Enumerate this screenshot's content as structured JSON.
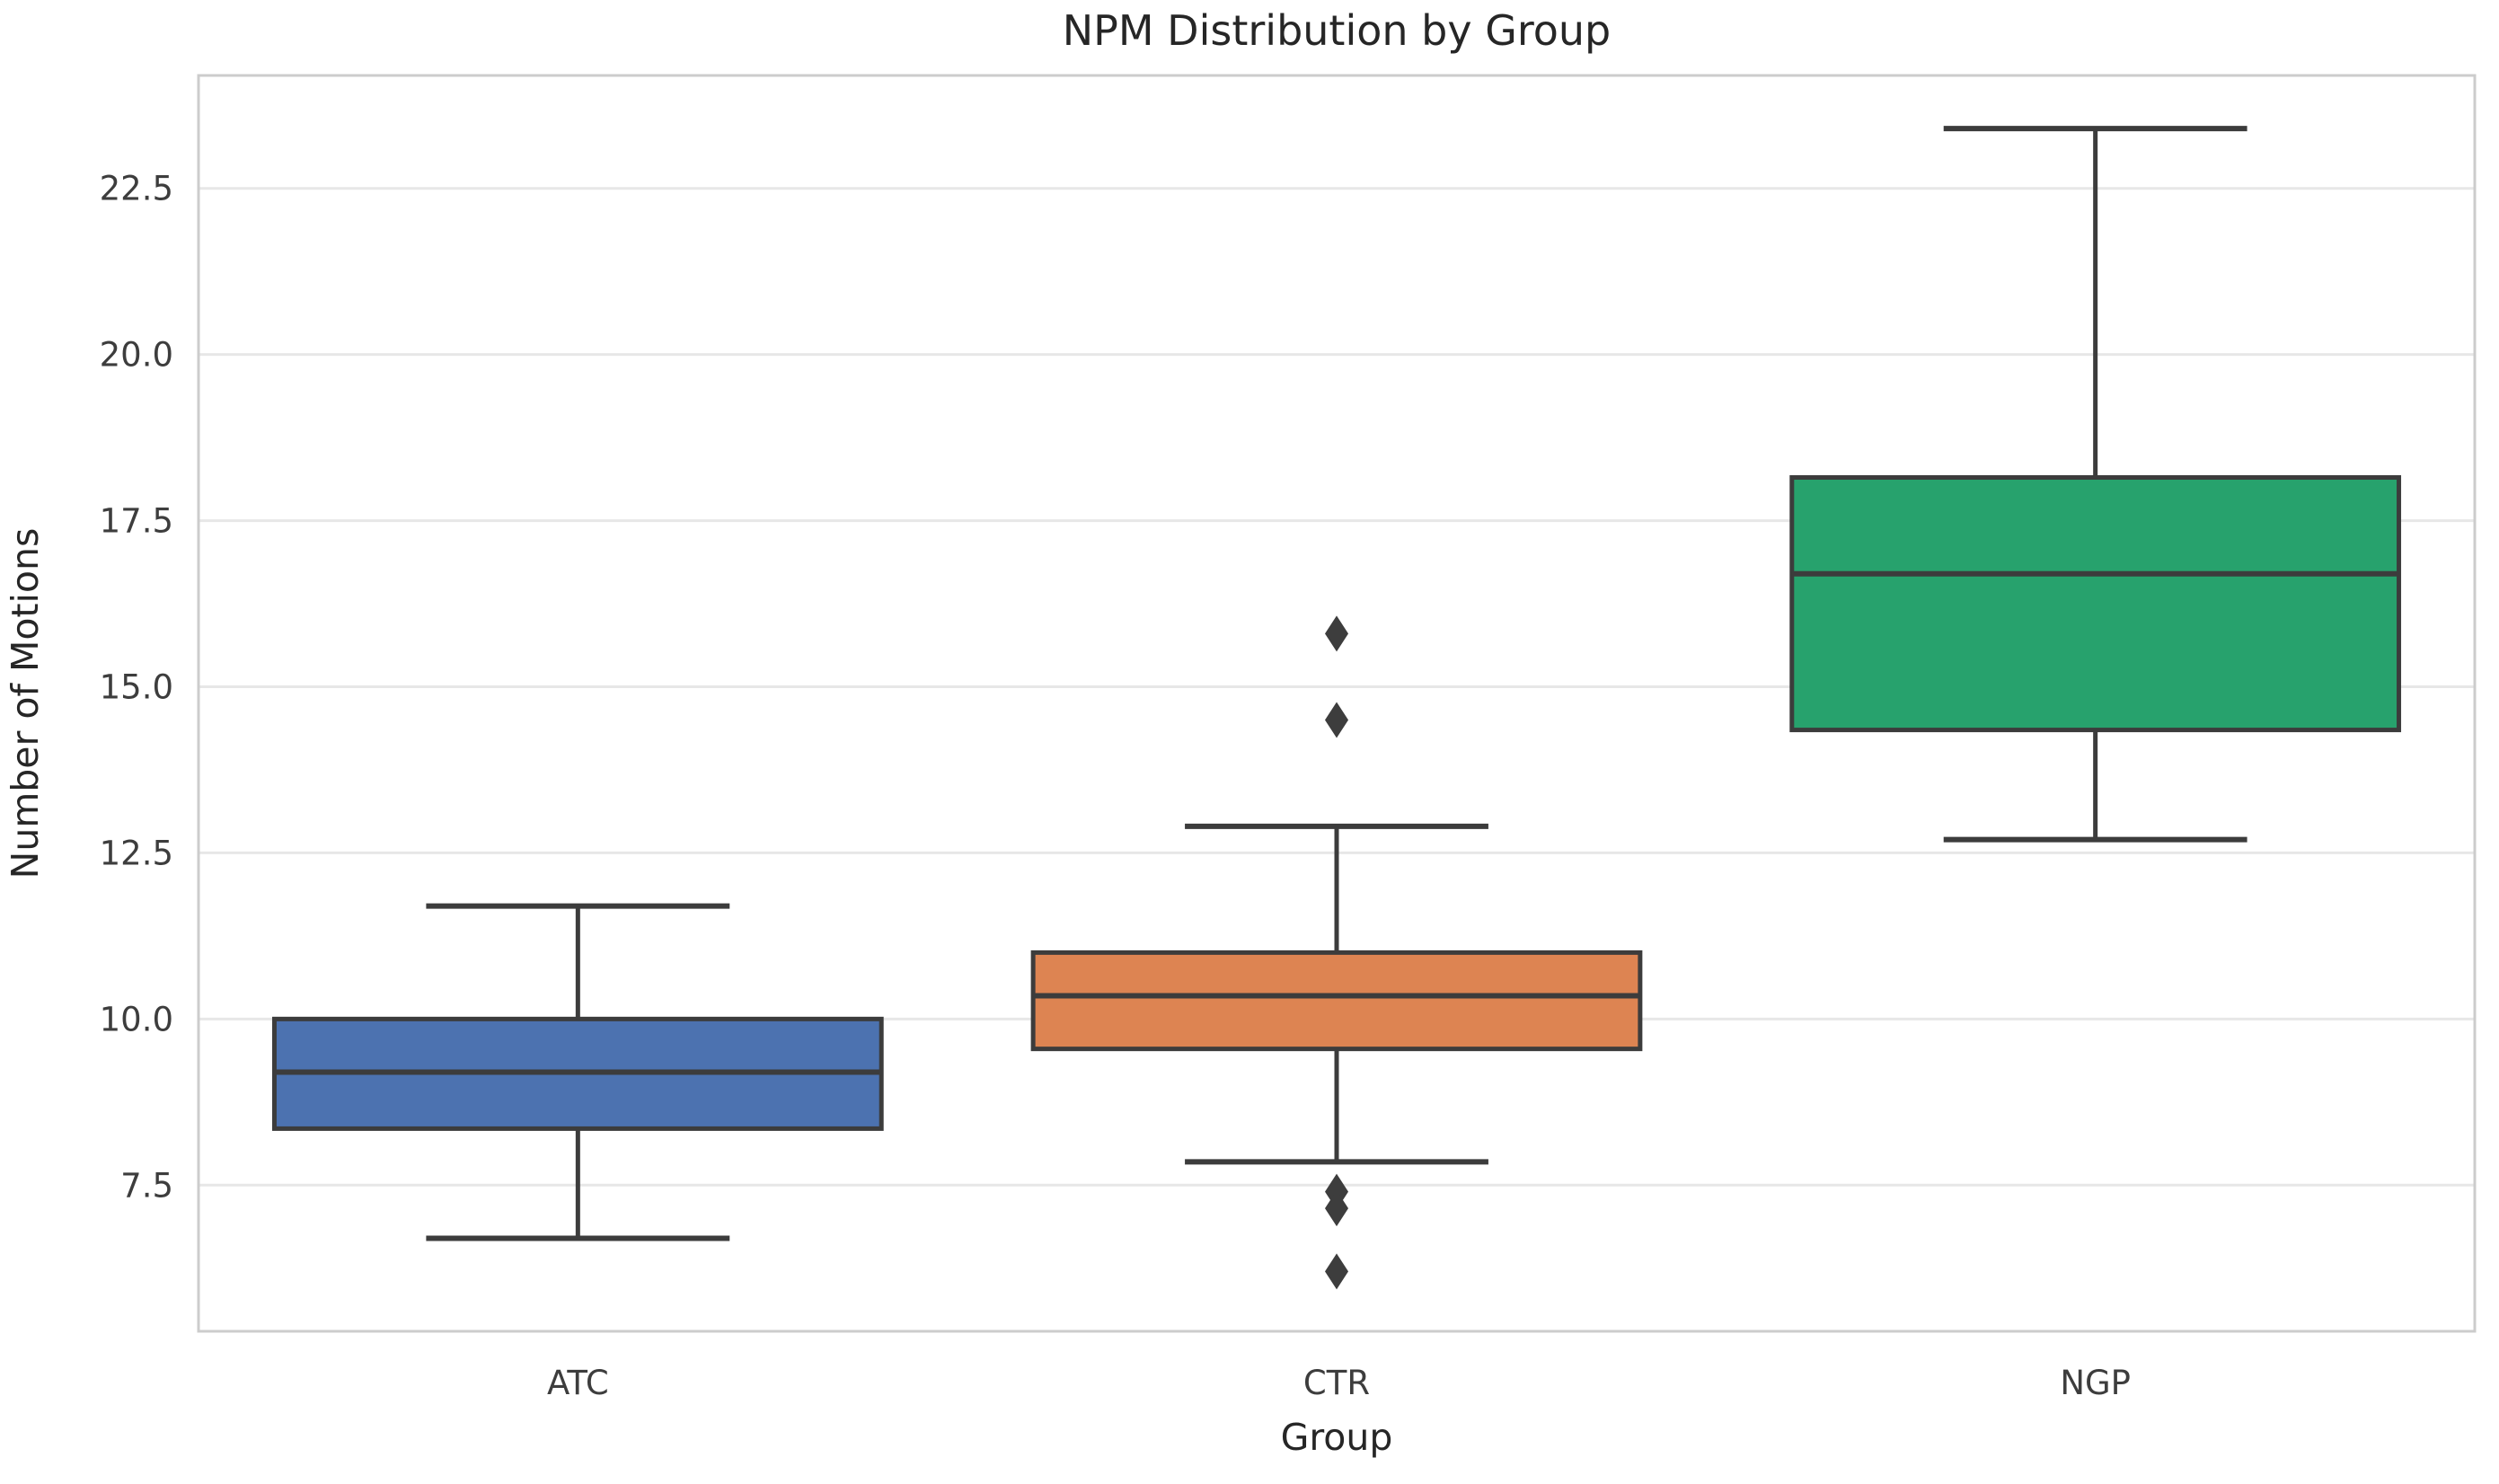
{
  "title": "NPM Distribution by Group",
  "axes": {
    "x_label": "Group",
    "y_label": "Number of Motions",
    "y_tick_labels": [
      "7.5",
      "10.0",
      "12.5",
      "15.0",
      "17.5",
      "20.0",
      "22.5"
    ],
    "categories": [
      "ATC",
      "CTR",
      "NGP"
    ]
  },
  "chart_data": {
    "type": "box",
    "title": "NPM Distribution by Group",
    "xlabel": "Group",
    "ylabel": "Number of Motions",
    "categories": [
      "ATC",
      "CTR",
      "NGP"
    ],
    "y_ticks": [
      7.5,
      10.0,
      12.5,
      15.0,
      17.5,
      20.0,
      22.5
    ],
    "ylim": [
      5.3,
      24.2
    ],
    "grid": "horizontal",
    "legend": "none",
    "series": [
      {
        "name": "ATC",
        "whisker_low": 6.7,
        "q1": 8.35,
        "median": 9.2,
        "q3": 10.0,
        "whisker_high": 11.7,
        "outliers": [],
        "color": "#4C72B0"
      },
      {
        "name": "CTR",
        "whisker_low": 7.85,
        "q1": 9.55,
        "median": 10.35,
        "q3": 11.0,
        "whisker_high": 12.9,
        "outliers": [
          15.8,
          14.5,
          7.4,
          7.15,
          6.2
        ],
        "color": "#DD8452"
      },
      {
        "name": "NGP",
        "whisker_low": 12.7,
        "q1": 14.35,
        "median": 16.7,
        "q3": 18.15,
        "whisker_high": 23.4,
        "outliers": [],
        "color": "#27A26D"
      }
    ]
  },
  "colors": {
    "background": "#ffffff",
    "gridline": "#e7e7e7",
    "spine": "#cccccc",
    "box_edge": "#3c3c3c",
    "whisker": "#3c3c3c",
    "median_line": "#3c3c3c",
    "outlier": "#3d3d3d",
    "title_text": "#262626",
    "tick_text": "#3d3d3d"
  }
}
